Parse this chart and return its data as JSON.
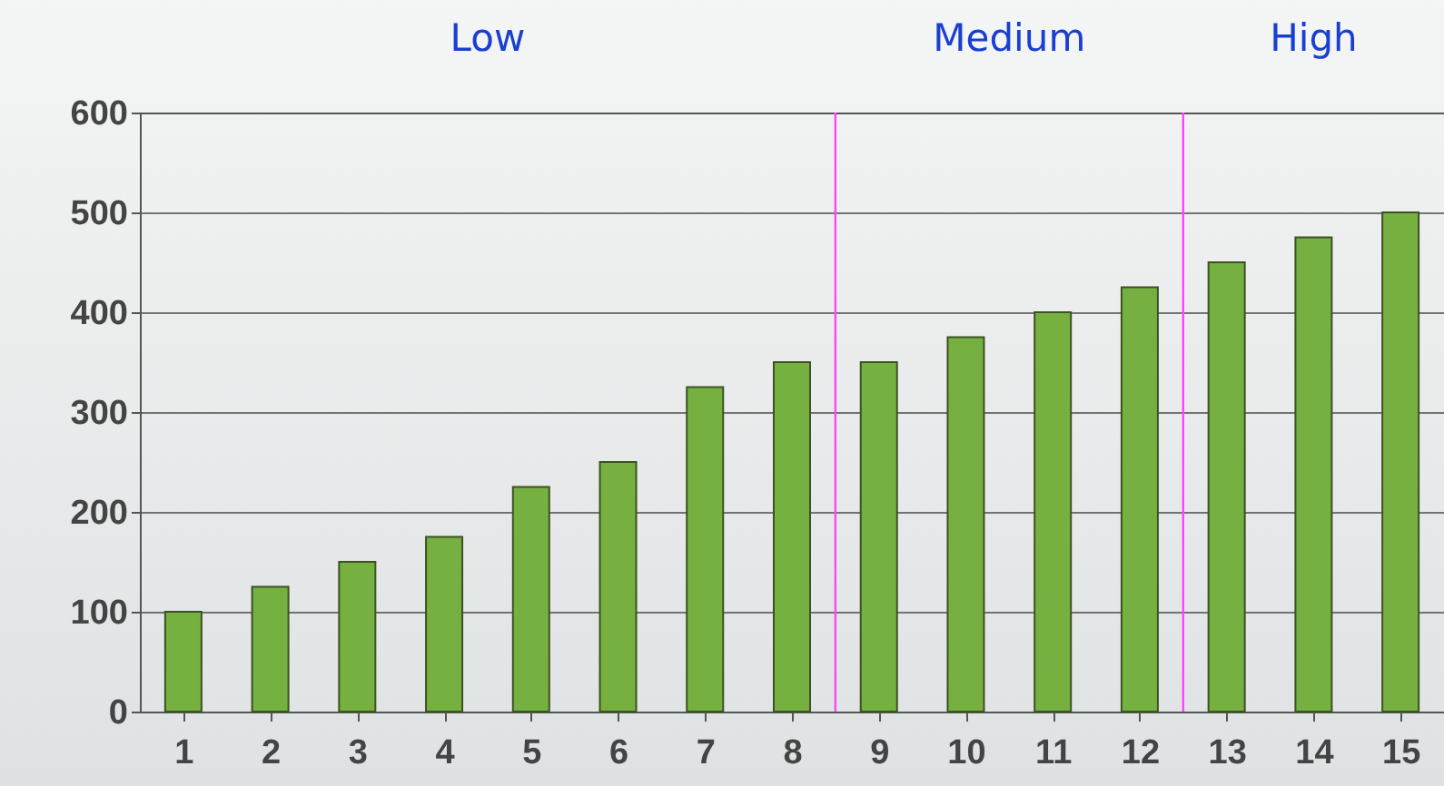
{
  "chart_data": {
    "type": "bar",
    "x": [
      1,
      2,
      3,
      4,
      5,
      6,
      7,
      8,
      9,
      10,
      11,
      12,
      13,
      14,
      15
    ],
    "values": [
      100,
      125,
      150,
      175,
      225,
      250,
      325,
      350,
      350,
      375,
      400,
      425,
      450,
      475,
      500
    ],
    "color": "#76b041",
    "xlim": [
      0.5,
      15.5
    ],
    "xticks": [
      1,
      2,
      3,
      4,
      5,
      6,
      7,
      8,
      9,
      10,
      11,
      12,
      13,
      14,
      15
    ],
    "ylim": [
      0,
      600
    ],
    "yticks": [
      0,
      100,
      200,
      300,
      400,
      500,
      600
    ],
    "grid": "y",
    "ref_lines": [
      {
        "axis": "x",
        "value": 8.5,
        "color": "#ff44ff"
      },
      {
        "axis": "x",
        "value": 12.5,
        "color": "#ff44ff"
      }
    ],
    "annotations": [
      "Low",
      "Medium",
      "High"
    ]
  }
}
